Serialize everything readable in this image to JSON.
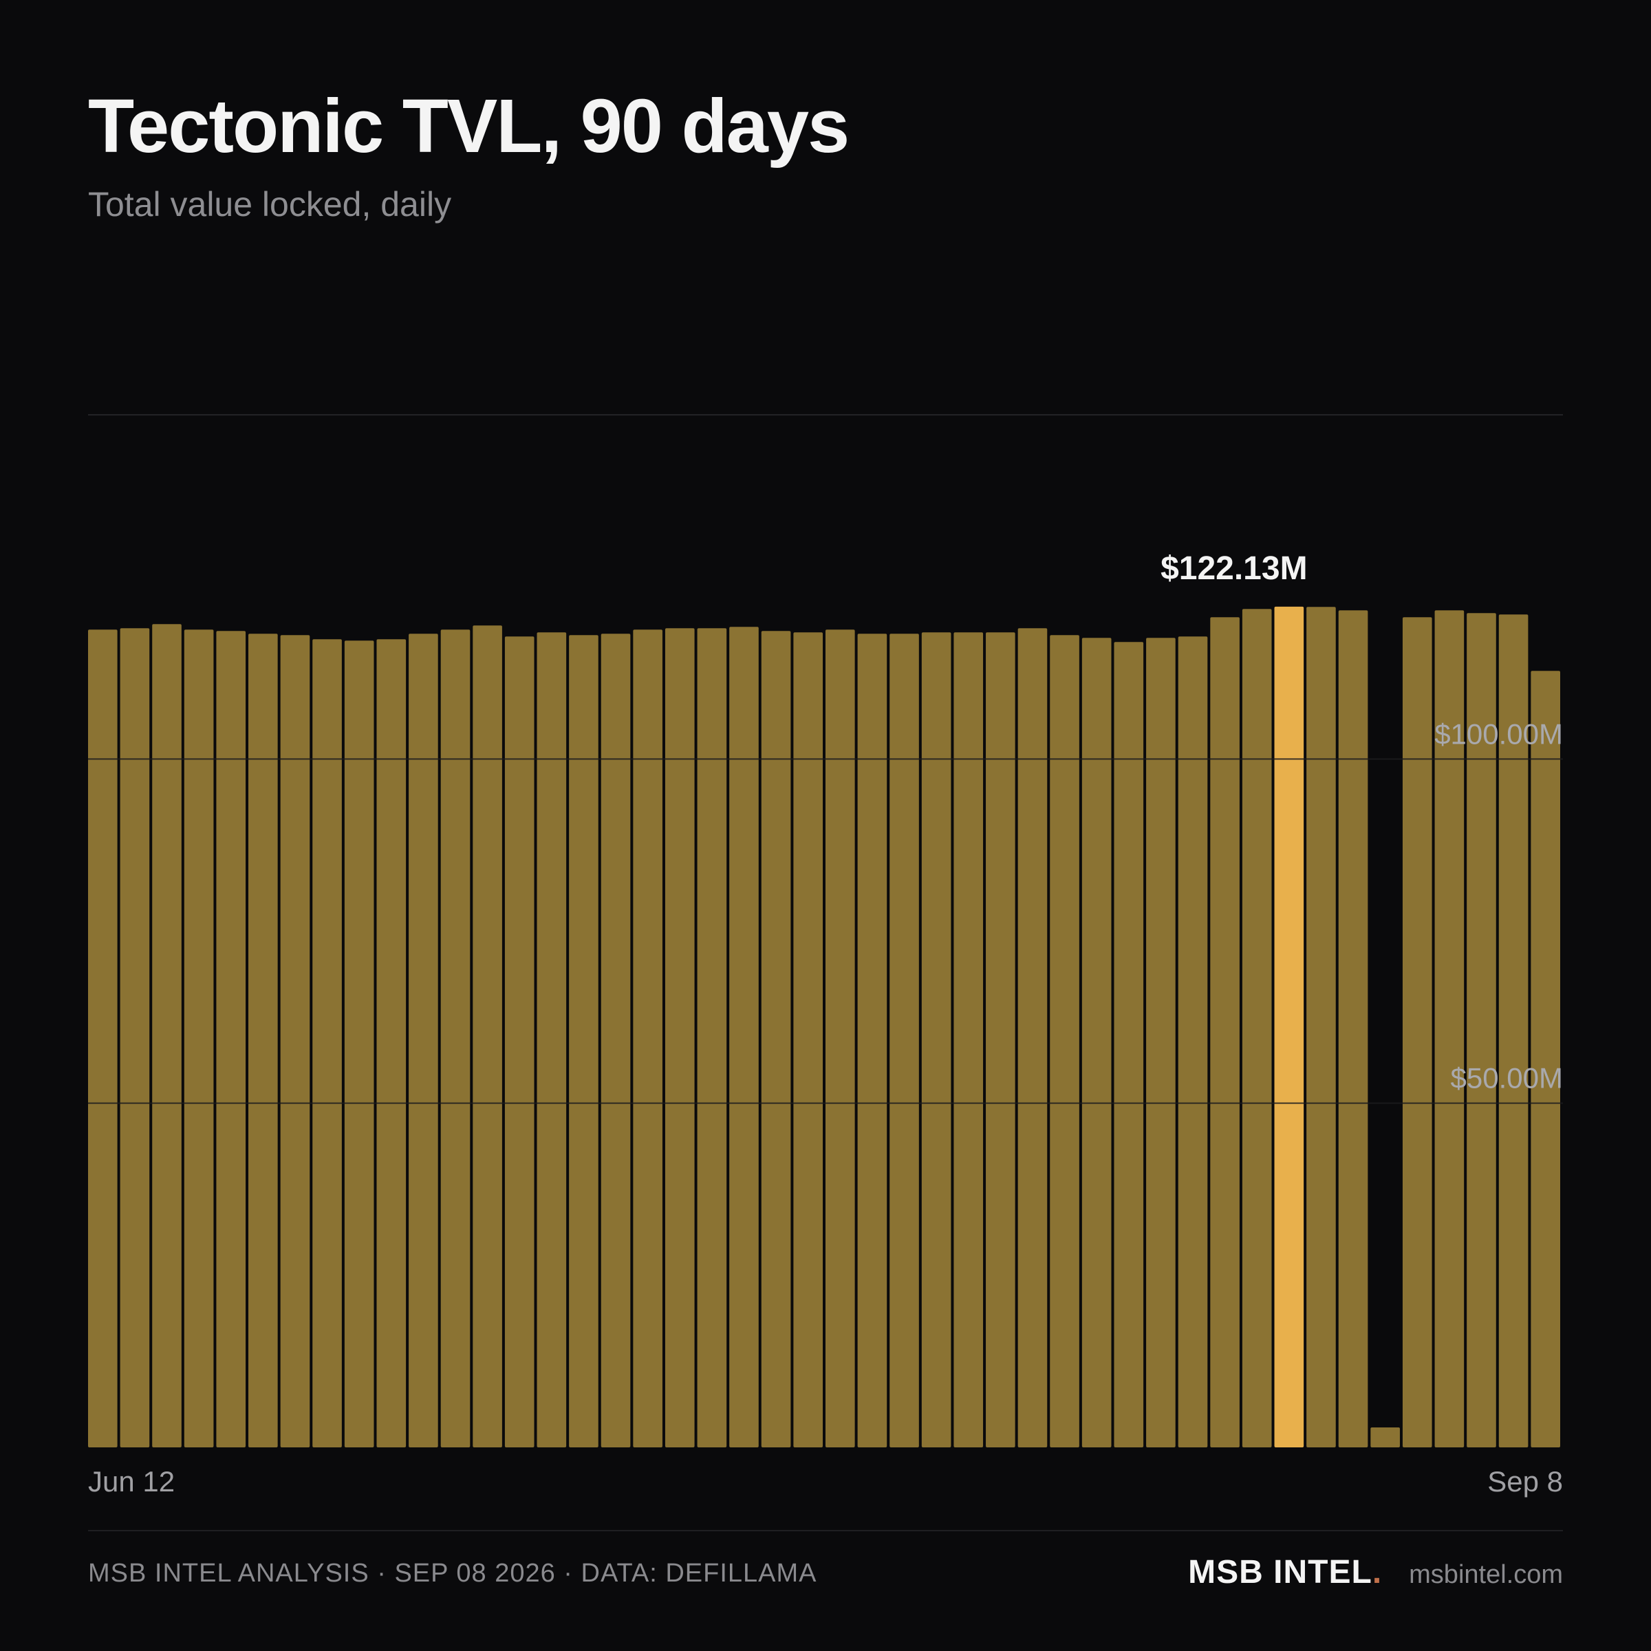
{
  "header": {
    "title": "Tectonic TVL, 90 days",
    "subtitle": "Total value locked, daily"
  },
  "chart_data": {
    "type": "bar",
    "title": "Tectonic TVL, 90 days",
    "subtitle": "Total value locked, daily",
    "xlabel": "",
    "ylabel": "",
    "ylim": [
      0,
      150
    ],
    "y_unit": "$M",
    "y_ticks": [
      {
        "value": 50,
        "label": "$50.00M"
      },
      {
        "value": 100,
        "label": "$100.00M"
      }
    ],
    "grid": true,
    "x_tick_labels": [
      "Jun 12",
      "Sep 8"
    ],
    "values": [
      118.8,
      119.0,
      119.6,
      118.8,
      118.6,
      118.2,
      118.0,
      117.4,
      117.2,
      117.4,
      118.2,
      118.8,
      119.4,
      117.8,
      118.4,
      118.0,
      118.2,
      118.8,
      119.0,
      119.0,
      119.2,
      118.6,
      118.4,
      118.8,
      118.2,
      118.2,
      118.4,
      118.4,
      118.4,
      119.0,
      118.0,
      117.6,
      117.0,
      117.6,
      117.8,
      120.6,
      121.8,
      122.13,
      122.1,
      121.6,
      2.9,
      120.6,
      121.6,
      121.2,
      121.0,
      112.8
    ],
    "highlight_index": 37,
    "highlight_label": "$122.13M",
    "bar_color": "#8b7333",
    "highlight_color": "#e8b04c"
  },
  "footer": {
    "source": "MSB INTEL ANALYSIS · SEP 08 2026 · DATA: DEFILLAMA",
    "brand": "MSB INTEL",
    "brand_dot": ".",
    "site": "msbintel.com"
  }
}
